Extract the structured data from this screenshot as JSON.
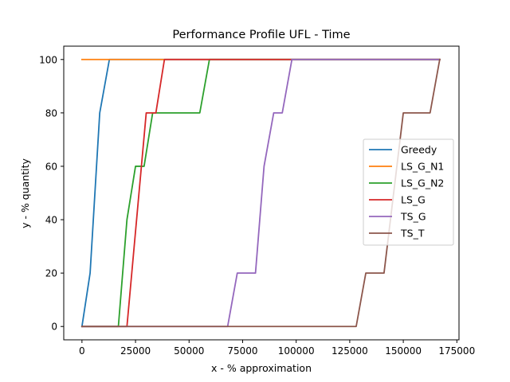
{
  "chart_data": {
    "type": "line",
    "title": "Performance Profile UFL - Time",
    "xlabel": "x - % approximation",
    "ylabel": "y - % quantity",
    "xlim": [
      -8500,
      176000
    ],
    "ylim": [
      -5,
      105
    ],
    "xticks": [
      0,
      25000,
      50000,
      75000,
      100000,
      125000,
      150000,
      175000
    ],
    "xtick_labels": [
      "0",
      "25000",
      "50000",
      "75000",
      "100000",
      "125000",
      "150000",
      "175000"
    ],
    "yticks": [
      0,
      20,
      40,
      60,
      80,
      100
    ],
    "ytick_labels": [
      "0",
      "20",
      "40",
      "60",
      "80",
      "100"
    ],
    "grid": false,
    "legend_position": "center-right",
    "series": [
      {
        "name": "Greedy",
        "color": "#1f77b4",
        "x": [
          0,
          3800,
          8300,
          12800,
          167000
        ],
        "y": [
          0,
          20,
          80,
          100,
          100
        ]
      },
      {
        "name": "LS_G_N1",
        "color": "#ff7f0e",
        "x": [
          0,
          167000
        ],
        "y": [
          100,
          100
        ]
      },
      {
        "name": "LS_G_N2",
        "color": "#2ca02c",
        "x": [
          0,
          17000,
          21000,
          25000,
          29000,
          33000,
          55000,
          59500,
          167000
        ],
        "y": [
          0,
          0,
          40,
          60,
          60,
          80,
          80,
          100,
          100
        ]
      },
      {
        "name": "LS_G",
        "color": "#d62728",
        "x": [
          0,
          21000,
          30000,
          34500,
          38500,
          167000
        ],
        "y": [
          0,
          0,
          80,
          80,
          100,
          100
        ]
      },
      {
        "name": "TS_G",
        "color": "#9467bd",
        "x": [
          0,
          68000,
          72500,
          81000,
          85000,
          89500,
          93500,
          98000,
          167000
        ],
        "y": [
          0,
          0,
          20,
          20,
          60,
          80,
          80,
          100,
          100
        ]
      },
      {
        "name": "TS_T",
        "color": "#8c564b",
        "x": [
          0,
          128000,
          132500,
          141000,
          150000,
          162500,
          167000
        ],
        "y": [
          0,
          0,
          20,
          20,
          80,
          80,
          100
        ]
      }
    ]
  }
}
